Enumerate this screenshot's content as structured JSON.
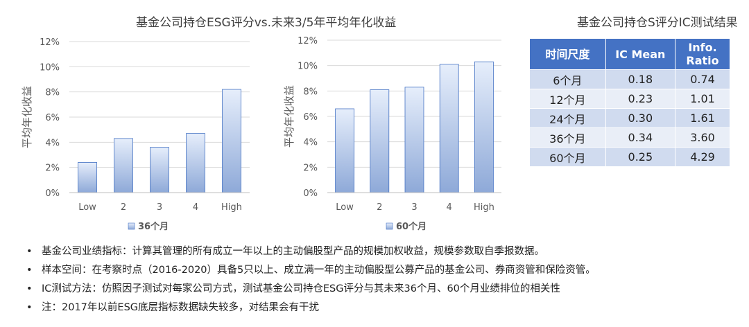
{
  "main_title": "基金公司持仓ESG评分vs.未来3/5年平均年化收益",
  "table_title": "基金公司持仓S评分IC测试结果",
  "chart_data": [
    {
      "type": "bar",
      "categories": [
        "Low",
        "2",
        "3",
        "4",
        "High"
      ],
      "series": [
        {
          "name": "36个月",
          "values": [
            2.4,
            4.3,
            3.6,
            4.7,
            8.2
          ]
        }
      ],
      "ylabel": "平均年化收益",
      "ylim": [
        0,
        12
      ],
      "yticks": [
        "0%",
        "2%",
        "4%",
        "6%",
        "8%",
        "10%",
        "12%"
      ],
      "grid": true,
      "legend": "bottom"
    },
    {
      "type": "bar",
      "categories": [
        "Low",
        "2",
        "3",
        "4",
        "High"
      ],
      "series": [
        {
          "name": "60个月",
          "values": [
            6.6,
            8.1,
            8.3,
            10.1,
            10.3
          ]
        }
      ],
      "ylabel": "平均年化收益",
      "ylim": [
        0,
        12
      ],
      "yticks": [
        "0%",
        "2%",
        "4%",
        "6%",
        "8%",
        "10%",
        "12%"
      ],
      "grid": true,
      "legend": "bottom"
    }
  ],
  "ic_table": {
    "headers": [
      "时间尺度",
      "IC Mean",
      "Info. Ratio"
    ],
    "rows": [
      [
        "6个月",
        "0.18",
        "0.74"
      ],
      [
        "12个月",
        "0.23",
        "1.01"
      ],
      [
        "24个月",
        "0.30",
        "1.61"
      ],
      [
        "36个月",
        "0.34",
        "3.60"
      ],
      [
        "60个月",
        "0.25",
        "4.29"
      ]
    ]
  },
  "notes": [
    "基金公司业绩指标：计算其管理的所有成立一年以上的主动偏股型产品的规模加权收益，规模参数取自季报数据。",
    "样本空间：在考察时点（2016-2020）具备5只以上、成立满一年的主动偏股型公募产品的基金公司、券商资管和保险资管。",
    "IC测试方法：仿照因子测试对每家公司方式，测试基金公司持仓ESG评分与其未来36个月、60个月业绩排位的相关性",
    "注：2017年以前ESG底层指标数据缺失较多，对结果会有干扰"
  ],
  "colors": {
    "bar_top": "#e6eefb",
    "bar_bottom": "#8ea9d8",
    "bar_stroke": "#4472c4",
    "header": "#4472c4",
    "row_dark": "#d0dbef",
    "row_light": "#e9eef7"
  }
}
